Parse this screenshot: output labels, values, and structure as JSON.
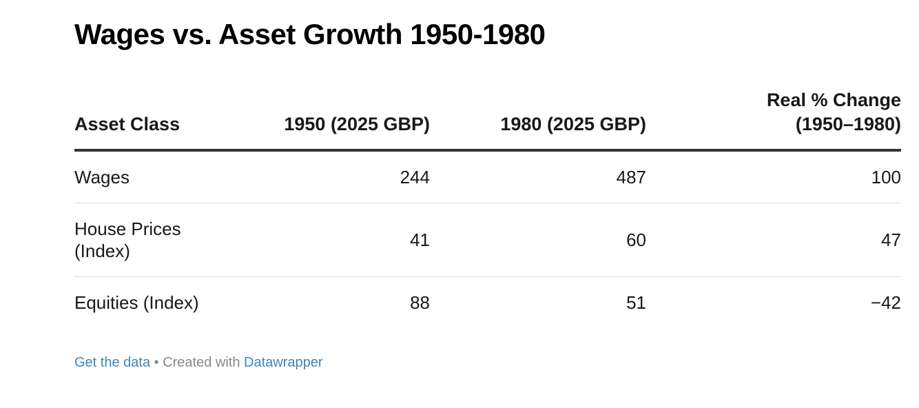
{
  "title": "Wages vs. Asset Growth 1950-1980",
  "chart_data": {
    "type": "table",
    "title": "Wages vs. Asset Growth 1950-1980",
    "columns": [
      "Asset Class",
      "1950 (2025 GBP)",
      "1980 (2025 GBP)",
      "Real % Change (1950–1980)"
    ],
    "column_header_lines": [
      [
        "Asset Class"
      ],
      [
        "1950 (2025 GBP)"
      ],
      [
        "1980 (2025 GBP)"
      ],
      [
        "Real % Change",
        "(1950–1980)"
      ]
    ],
    "rows": [
      {
        "label": "Wages",
        "label_lines": [
          "Wages"
        ],
        "values": [
          "244",
          "487",
          "100"
        ]
      },
      {
        "label": "House Prices (Index)",
        "label_lines": [
          "House Prices",
          "(Index)"
        ],
        "values": [
          "41",
          "60",
          "47"
        ]
      },
      {
        "label": "Equities (Index)",
        "label_lines": [
          "Equities (Index)"
        ],
        "values": [
          "88",
          "51",
          "−42"
        ]
      }
    ]
  },
  "footer": {
    "get_data_label": "Get the data",
    "separator": " • ",
    "created_with": "Created with ",
    "tool_name": "Datawrapper"
  },
  "colors": {
    "link": "#3d84bd",
    "footer_text": "#888888",
    "header_rule": "#333333",
    "row_rule": "#dcdcdc"
  }
}
